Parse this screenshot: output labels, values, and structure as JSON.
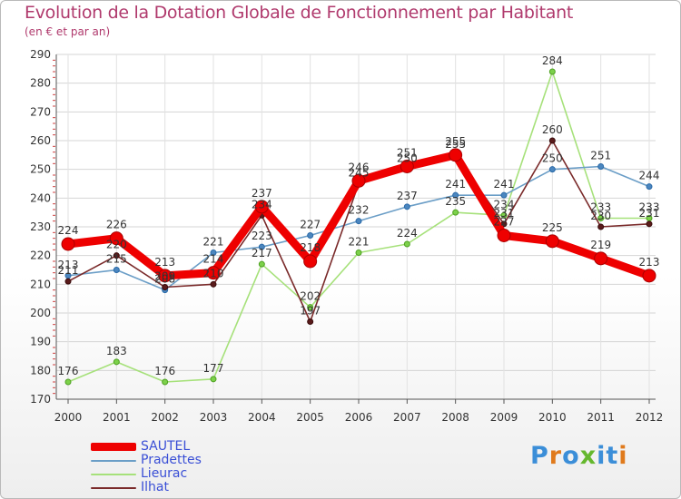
{
  "title": "Evolution de la Dotation Globale de Fonctionnement par Habitant",
  "subtitle": "(en € et par an)",
  "logo": {
    "text": "Proxiti",
    "colors": [
      "#3b8ed8",
      "#e07a1c",
      "#65b82e"
    ]
  },
  "chart_data": {
    "type": "line",
    "title": "Evolution de la Dotation Globale de Fonctionnement par Habitant",
    "ylabel": "(en € et par an)",
    "xlabel": "",
    "x": [
      "2000",
      "2001",
      "2002",
      "2003",
      "2004",
      "2005",
      "2006",
      "2007",
      "2008",
      "2009",
      "2010",
      "2011",
      "2012"
    ],
    "ylim": [
      170,
      290
    ],
    "yticks": [
      170,
      180,
      190,
      200,
      210,
      220,
      230,
      240,
      250,
      260,
      270,
      280,
      290
    ],
    "grid": true,
    "legend_position": "bottom-left",
    "series": [
      {
        "name": "SAUTEL",
        "color": "#ee0000",
        "values": [
          224,
          226,
          213,
          214,
          237,
          218,
          246,
          251,
          255,
          227,
          225,
          219,
          213
        ],
        "labels": [
          "224",
          "226",
          "213",
          "214",
          "237",
          "218",
          "246",
          "251",
          "255",
          "227",
          "225",
          "219",
          "213"
        ]
      },
      {
        "name": "Pradettes",
        "color": "#6b9ec7",
        "values": [
          213,
          215,
          208,
          221,
          223,
          227,
          232,
          237,
          241,
          241,
          250,
          251,
          244
        ],
        "labels": [
          "213",
          "215",
          "208",
          "221",
          "223",
          "227",
          "232",
          "237",
          "241",
          "241",
          "250",
          "251",
          "244"
        ]
      },
      {
        "name": "Lieurac",
        "color": "#a6e17a",
        "values": [
          176,
          183,
          176,
          177,
          217,
          202,
          221,
          224,
          235,
          234,
          284,
          233,
          233
        ],
        "labels": [
          "176",
          "183",
          "176",
          "177",
          "217",
          "202",
          "221",
          "224",
          "235",
          "234",
          "284",
          "233",
          "233"
        ]
      },
      {
        "name": "Ilhat",
        "color": "#7a2a2a",
        "values": [
          211,
          220,
          209,
          210,
          234,
          197,
          245,
          250,
          255,
          231,
          260,
          230,
          231
        ],
        "labels": [
          "211",
          "220",
          "209",
          "210",
          "234",
          "197",
          "245",
          "250",
          "255",
          "231",
          "260",
          "230",
          "231"
        ]
      }
    ]
  }
}
